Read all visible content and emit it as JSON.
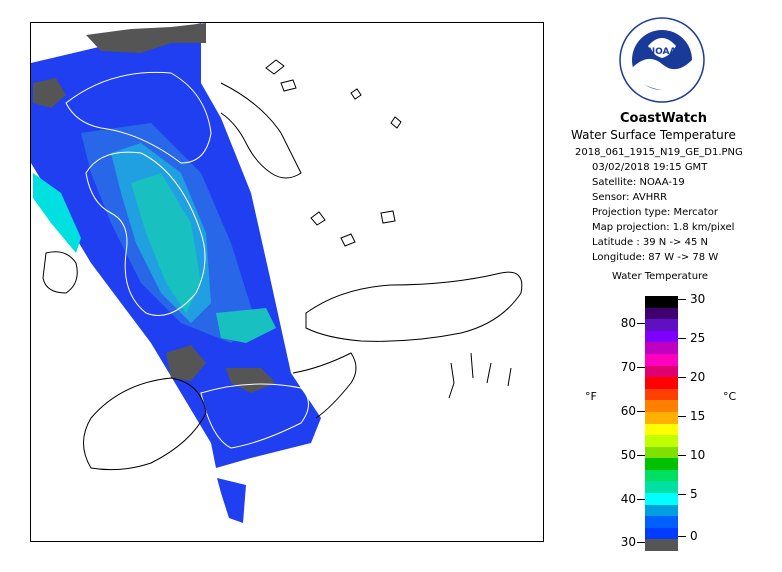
{
  "header": {
    "title": "CoastWatch",
    "subtitle": "Water Surface Temperature",
    "file_id": "2018_061_1915_N19_GE_D1.PNG",
    "date_time": "03/02/2018   19:15 GMT",
    "satellite": "Satellite: NOAA-19",
    "sensor": "Sensor: AVHRR",
    "projection_type": "Projection type:  Mercator",
    "map_projection": "Map projection: 1.8 km/pixel",
    "latitude": "Latitude : 39 N -> 45 N",
    "longitude": "Longitude: 87 W -> 78 W"
  },
  "logo": {
    "text": "NOAA"
  },
  "legend": {
    "title": "Water Temperature",
    "unit_f": "°F",
    "unit_c": "°C",
    "f_labels": [
      "80",
      "70",
      "60",
      "50",
      "40",
      "30"
    ],
    "c_labels": [
      "30",
      "25",
      "20",
      "15",
      "10",
      "5",
      "0"
    ],
    "colors": [
      "#000000",
      "#400070",
      "#6010c0",
      "#8000ff",
      "#c000c0",
      "#ff00c0",
      "#e00070",
      "#ff0000",
      "#ff4000",
      "#ff8000",
      "#ffb000",
      "#ffff00",
      "#c0ff00",
      "#80e000",
      "#00c000",
      "#00e060",
      "#00e0a0",
      "#00ffff",
      "#00a0e0",
      "#0060ff",
      "#003cff",
      "#555555"
    ]
  },
  "colors": {
    "water_blue": "#1f3ff0",
    "water_mid": "#2868e8",
    "water_light": "#20a0e0",
    "water_teal": "#18c0c0",
    "land_gray": "#555555",
    "coast": "#000000",
    "grid_line": "#ffffff"
  }
}
